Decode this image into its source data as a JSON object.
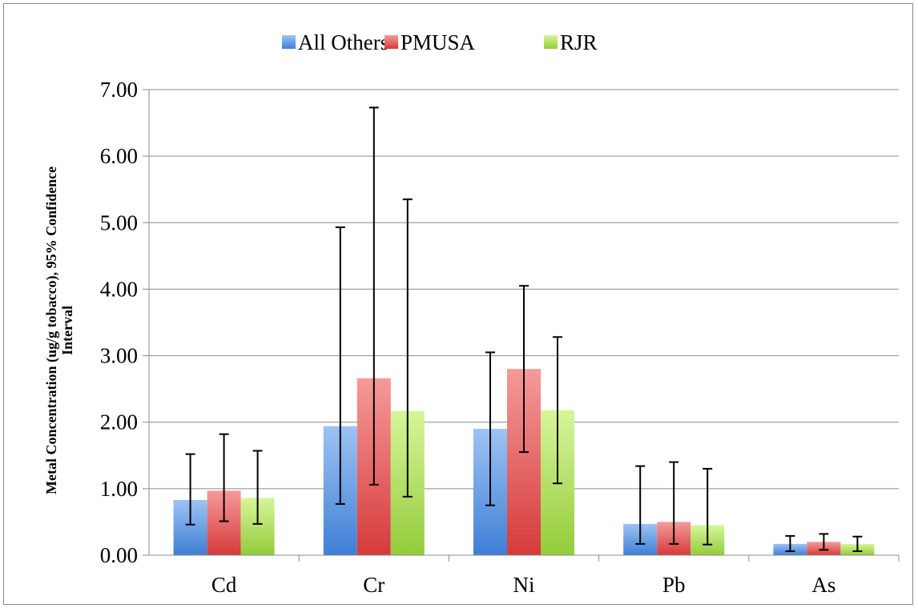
{
  "chart_data": {
    "type": "bar",
    "title": "",
    "xlabel": "",
    "ylabel": "Metal Concentration (ug/g tobacco), 95% Confidence Interval",
    "ylabel_lines": [
      "Metal Concentration (ug/g tobacco), 95% Confidence",
      "Interval"
    ],
    "categories": [
      "Cd",
      "Cr",
      "Ni",
      "Pb",
      "As"
    ],
    "ylim": [
      0,
      7
    ],
    "yticks": [
      "0.00",
      "1.00",
      "2.00",
      "3.00",
      "4.00",
      "5.00",
      "6.00",
      "7.00"
    ],
    "grid": true,
    "legend_position": "top",
    "series": [
      {
        "name": "All Others",
        "color_top": "#9dc3f2",
        "color_bottom": "#3f7fd6",
        "values": [
          0.83,
          1.94,
          1.9,
          0.47,
          0.17
        ],
        "error_low": [
          0.46,
          0.77,
          0.75,
          0.17,
          0.06
        ],
        "error_high": [
          1.52,
          4.93,
          3.05,
          1.34,
          0.29
        ]
      },
      {
        "name": "PMUSA",
        "color_top": "#f59a9a",
        "color_bottom": "#d63a3a",
        "values": [
          0.97,
          2.66,
          2.8,
          0.5,
          0.2
        ],
        "error_low": [
          0.51,
          1.06,
          1.55,
          0.17,
          0.08
        ],
        "error_high": [
          1.82,
          6.73,
          4.05,
          1.4,
          0.32
        ]
      },
      {
        "name": "RJR",
        "color_top": "#d6f59a",
        "color_bottom": "#93cc3a",
        "values": [
          0.86,
          2.17,
          2.18,
          0.45,
          0.17
        ],
        "error_low": [
          0.47,
          0.88,
          1.08,
          0.16,
          0.06
        ],
        "error_high": [
          1.57,
          5.35,
          3.28,
          1.3,
          0.28
        ]
      }
    ]
  }
}
